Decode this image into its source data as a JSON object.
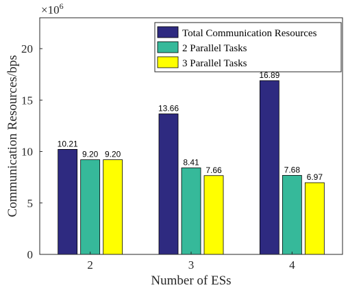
{
  "chart_data": {
    "type": "bar",
    "xlabel": "Number of ESs",
    "ylabel": "Communication Resources/bps",
    "y_multiplier": {
      "base": "×10",
      "exponent": "6"
    },
    "categories": [
      "2",
      "3",
      "4"
    ],
    "series": [
      {
        "name": "Total Communication Resources",
        "color": "#2e2a80",
        "values": [
          10.21,
          13.66,
          16.89
        ],
        "labels": [
          "10.21",
          "13.66",
          "16.89"
        ]
      },
      {
        "name": "2 Parallel Tasks",
        "color": "#36b99a",
        "values": [
          9.2,
          8.41,
          7.68
        ],
        "labels": [
          "9.20",
          "8.41",
          "7.68"
        ]
      },
      {
        "name": "3 Parallel Tasks",
        "color": "#ffff00",
        "values": [
          9.2,
          7.66,
          6.97
        ],
        "labels": [
          "9.20",
          "7.66",
          "6.97"
        ]
      }
    ],
    "ylim": [
      0,
      23
    ],
    "yticks": [
      0,
      5,
      10,
      15,
      20
    ],
    "ytick_labels": [
      "0",
      "5",
      "10",
      "15",
      "20"
    ],
    "legend_position": "top-right",
    "grid": false
  }
}
